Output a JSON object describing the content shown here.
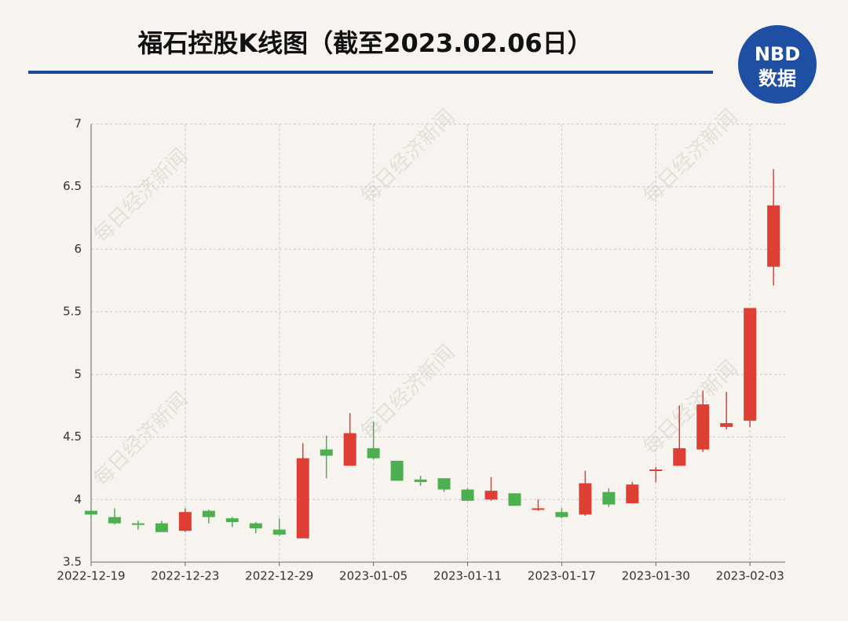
{
  "chart_data": {
    "type": "candlestick",
    "title": "福石控股K线图（截至2023.02.06日）",
    "logo": {
      "top": "NBD",
      "bottom": "数据"
    },
    "watermark": "每日经济新闻",
    "categories": [
      "2022-12-19",
      null,
      null,
      null,
      "2022-12-23",
      null,
      null,
      null,
      "2022-12-29",
      null,
      null,
      null,
      "2023-01-05",
      null,
      null,
      null,
      "2023-01-11",
      null,
      null,
      null,
      "2023-01-17",
      null,
      null,
      null,
      "2023-01-30",
      null,
      null,
      null,
      "2023-02-03",
      null
    ],
    "open": [
      3.91,
      3.86,
      3.81,
      3.81,
      3.75,
      3.91,
      3.85,
      3.81,
      3.76,
      3.69,
      4.4,
      4.27,
      4.41,
      4.31,
      4.16,
      4.17,
      4.08,
      4.0,
      4.05,
      3.92,
      3.9,
      3.88,
      4.06,
      3.97,
      4.23,
      4.27,
      4.4,
      4.58,
      4.63,
      5.86
    ],
    "high": [
      3.92,
      3.93,
      3.83,
      3.83,
      3.93,
      3.92,
      3.86,
      3.82,
      3.85,
      4.45,
      4.51,
      4.69,
      4.62,
      4.31,
      4.19,
      4.17,
      4.09,
      4.18,
      4.05,
      4.0,
      3.93,
      4.23,
      4.09,
      4.14,
      4.26,
      4.75,
      4.87,
      4.86,
      5.53,
      6.64
    ],
    "low": [
      3.85,
      3.8,
      3.76,
      3.74,
      3.74,
      3.81,
      3.78,
      3.73,
      3.71,
      3.69,
      4.17,
      4.27,
      4.32,
      4.15,
      4.11,
      4.06,
      3.99,
      3.99,
      3.95,
      3.91,
      3.85,
      3.87,
      3.94,
      3.97,
      4.14,
      4.27,
      4.38,
      4.56,
      4.58,
      5.71
    ],
    "close": [
      3.88,
      3.81,
      3.8,
      3.74,
      3.9,
      3.86,
      3.82,
      3.77,
      3.72,
      4.33,
      4.35,
      4.53,
      4.33,
      4.15,
      4.14,
      4.08,
      3.99,
      4.07,
      3.95,
      3.93,
      3.86,
      4.13,
      3.96,
      4.12,
      4.24,
      4.41,
      4.76,
      4.61,
      5.53,
      6.35
    ],
    "up_color": "#de3f35",
    "down_color": "#4caf50",
    "ylim": [
      3.5,
      7
    ],
    "yticks": [
      3.5,
      4,
      4.5,
      5,
      5.5,
      6,
      6.5,
      7
    ],
    "grid": true
  }
}
